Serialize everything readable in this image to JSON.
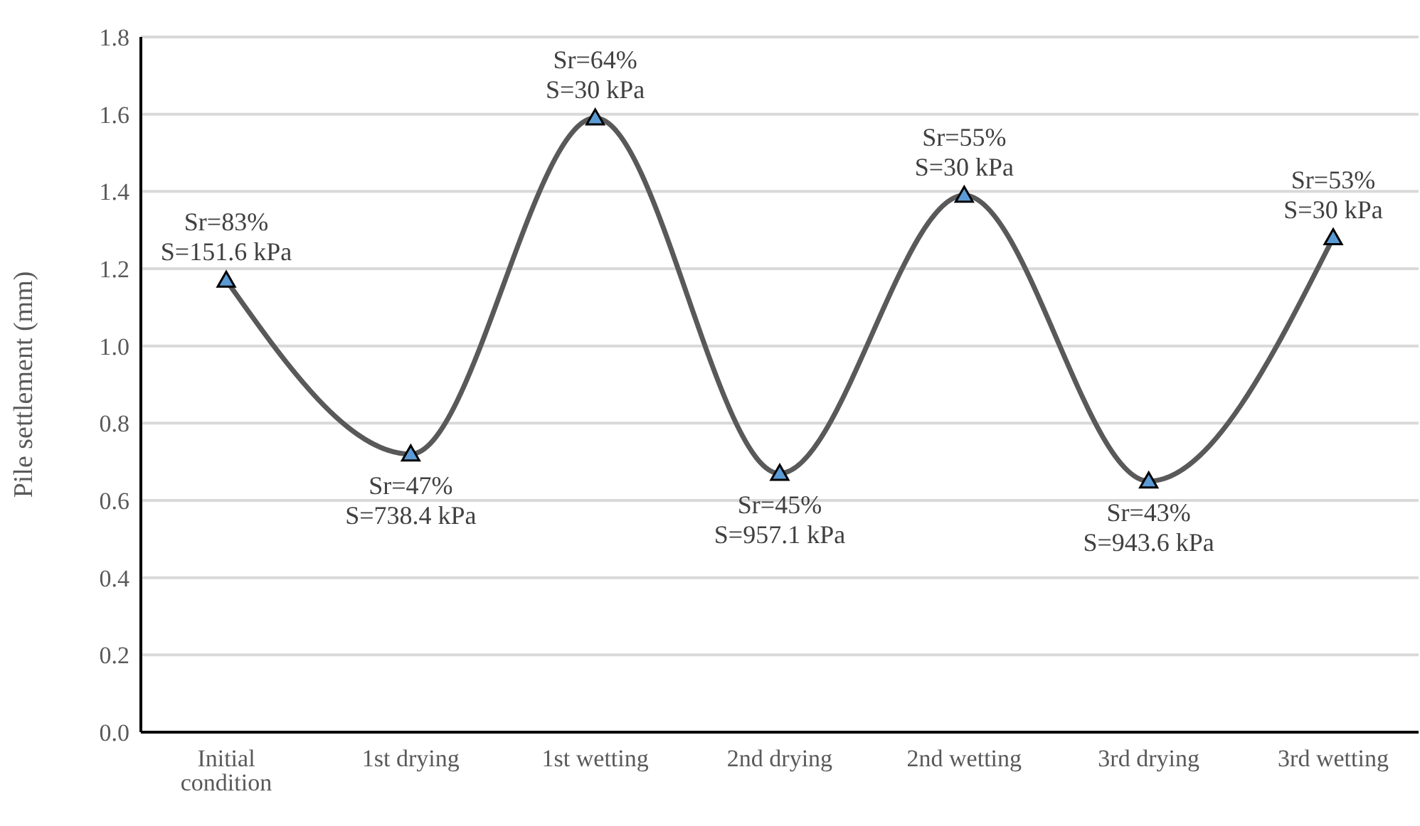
{
  "chart_data": {
    "type": "line",
    "ylabel": "Pile settlement (mm)",
    "categories": [
      "Initial condition",
      "1st drying",
      "1st wetting",
      "2nd drying",
      "2nd wetting",
      "3rd drying",
      "3rd wetting"
    ],
    "series": [
      {
        "color": "#595959",
        "values": [
          1.17,
          0.72,
          1.59,
          0.67,
          1.39,
          0.65,
          1.28
        ]
      }
    ],
    "ylim": [
      0,
      1.8
    ],
    "yticks": [
      {
        "value": 0,
        "label": "0.0"
      },
      0.2,
      0.4,
      0.6,
      0.8,
      {
        "value": 1,
        "label": "1.0"
      },
      1.2,
      1.4,
      1.6,
      1.8
    ],
    "grid": "y",
    "legend": false,
    "marker": "triangle",
    "line_style": "solid",
    "annotations": [
      {
        "text": "Sr=83%\nS=151.6 kPa",
        "x": "Initial condition",
        "y": 1.17
      },
      {
        "text": "Sr=47%\nS=738.4 kPa",
        "x": "1st drying",
        "y": 0.72
      },
      {
        "text": "Sr=64%\nS=30 kPa",
        "x": "1st wetting",
        "y": 1.59
      },
      {
        "text": "Sr=45%\nS=957.1 kPa",
        "x": "2nd drying",
        "y": 0.67
      },
      {
        "text": "Sr=55%\nS=30 kPa",
        "x": "2nd wetting",
        "y": 1.39
      },
      {
        "text": "Sr=43%\nS=943.6 kPa",
        "x": "3rd drying",
        "y": 0.65
      },
      {
        "text": "Sr=53%\nS=30 kPa",
        "x": "3rd wetting",
        "y": 1.28
      }
    ]
  }
}
